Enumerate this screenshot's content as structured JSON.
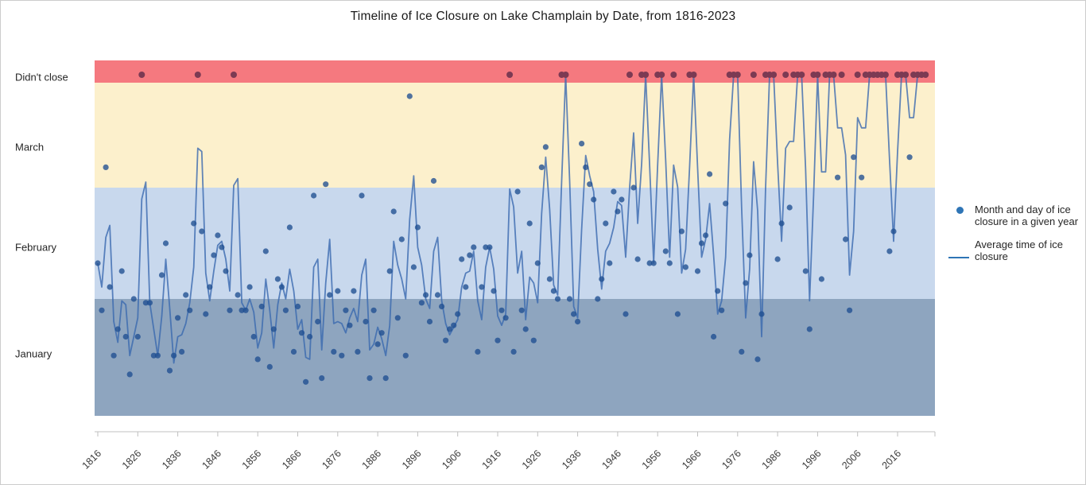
{
  "title": "Timeline of Ice Closure on Lake Champlain by Date, from 1816-2023",
  "legend": {
    "scatter_label": "Month and day of ice closure in a given year",
    "line_label": "Average time of ice closure"
  },
  "chart_data": {
    "type": "scatter",
    "title": "Timeline of Ice Closure on Lake Champlain by Date, from 1816-2023",
    "x_axis": {
      "tick_labels": [
        "1816",
        "1826",
        "1836",
        "1846",
        "1856",
        "1866",
        "1876",
        "1886",
        "1896",
        "1906",
        "1916",
        "1926",
        "1936",
        "1946",
        "1956",
        "1966",
        "1976",
        "1986",
        "1996",
        "2006",
        "2016"
      ],
      "range_years": [
        1816,
        2023
      ],
      "grid": false
    },
    "y_axis": {
      "labels": [
        "Didn't close",
        "March",
        "February",
        "January"
      ]
    },
    "bands": [
      {
        "label": "Didn't close",
        "color": "#F5797F"
      },
      {
        "label": "March",
        "color": "#FCF0CC"
      },
      {
        "label": "February",
        "color": "#C8D8ED"
      },
      {
        "label": "January",
        "color": "#8EA5BF"
      }
    ],
    "colors": {
      "scatter_dot": "rgba(31,78,145,0.78)",
      "didnt_close_dot": "#7C3A53",
      "line": "rgba(58,105,175,0.8)",
      "legend_marker": "#2E75B6",
      "axis": "#d6d6d6",
      "tick": "#bfbfbf",
      "tick_text": "#3b3b3b"
    },
    "legend_position": "right",
    "series": [
      {
        "name": "Month and day of ice closure in a given year",
        "type": "scatter",
        "start_year": 1816,
        "end_year": 2023,
        "value_unit": "day of year of ice closure (1 = Jan 1, 32 = Feb 1, 60 = Mar 1); null = lake didn't close that winter",
        "values_day_of_year": [
          41,
          29,
          66,
          35,
          17,
          24,
          39,
          22,
          12,
          32,
          22,
          null,
          31,
          31,
          17,
          17,
          38,
          46,
          13,
          17,
          27,
          18,
          33,
          29,
          51,
          null,
          49,
          28,
          35,
          43,
          48,
          45,
          39,
          29,
          null,
          33,
          29,
          29,
          35,
          22,
          16,
          30,
          44,
          14,
          24,
          37,
          35,
          29,
          50,
          18,
          30,
          23,
          10,
          22,
          58,
          26,
          11,
          61,
          33,
          18,
          34,
          17,
          29,
          25,
          34,
          18,
          58,
          26,
          11,
          29,
          20,
          23,
          11,
          39,
          54,
          27,
          47,
          17,
          87,
          40,
          50,
          31,
          33,
          26,
          62,
          33,
          30,
          21,
          24,
          25,
          28,
          42,
          35,
          43,
          45,
          18,
          35,
          45,
          45,
          34,
          21,
          29,
          27,
          null,
          18,
          59,
          29,
          24,
          51,
          21,
          41,
          66,
          72,
          37,
          34,
          32,
          null,
          null,
          32,
          28,
          26,
          73,
          66,
          61,
          57,
          32,
          37,
          51,
          41,
          59,
          54,
          57,
          28,
          null,
          60,
          42,
          null,
          null,
          41,
          41,
          null,
          null,
          44,
          41,
          null,
          28,
          49,
          40,
          null,
          null,
          39,
          46,
          48,
          64,
          22,
          34,
          29,
          56,
          null,
          null,
          null,
          18,
          36,
          43,
          null,
          16,
          28,
          null,
          null,
          null,
          42,
          51,
          null,
          55,
          null,
          null,
          null,
          39,
          24,
          null,
          null,
          37,
          null,
          null,
          null,
          63,
          null,
          47,
          29,
          69,
          null,
          63,
          null,
          null,
          null,
          null,
          null,
          null,
          44,
          49,
          null,
          null,
          null,
          69,
          null,
          null,
          null,
          null
        ]
      },
      {
        "name": "Average time of ice closure",
        "type": "line",
        "derivation": "2-year trailing mean of the closure day; 'didn't close' counted as day 92.3 (plotted in the red band)"
      }
    ]
  }
}
